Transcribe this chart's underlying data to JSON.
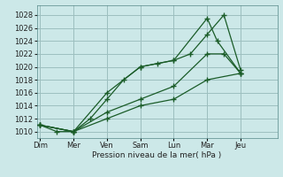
{
  "background_color": "#cce8e8",
  "grid_color": "#9dbfbf",
  "line_color": "#1a5c28",
  "xlabel": "Pression niveau de la mer( hPa )",
  "ylim": [
    1009,
    1029.5
  ],
  "yticks": [
    1010,
    1012,
    1014,
    1016,
    1018,
    1020,
    1022,
    1024,
    1026,
    1028
  ],
  "xlim": [
    -0.1,
    7.1
  ],
  "xtick_positions": [
    0,
    1,
    2,
    3,
    4,
    5,
    6
  ],
  "xtick_labels": [
    "Dim",
    "Mer",
    "Ven",
    "Sam",
    "Lun",
    "Mar",
    "Jeu"
  ],
  "series": [
    {
      "x": [
        0,
        0.5,
        1,
        1.5,
        2,
        2.5,
        3,
        3.5,
        4,
        4.5,
        5,
        5.5,
        6
      ],
      "y": [
        1011,
        1010,
        1010,
        1012,
        1015,
        1018,
        1020,
        1020.5,
        1021,
        1022,
        1025,
        1028,
        1019.5
      ]
    },
    {
      "x": [
        0,
        1,
        2,
        3,
        4,
        5,
        5.3,
        6
      ],
      "y": [
        1011,
        1010,
        1016,
        1020,
        1021,
        1027.5,
        1024,
        1019
      ]
    },
    {
      "x": [
        0,
        1,
        2,
        3,
        4,
        5,
        5.5,
        6
      ],
      "y": [
        1011,
        1010,
        1013,
        1015,
        1017,
        1022,
        1022,
        1019
      ]
    },
    {
      "x": [
        0,
        1,
        2,
        3,
        4,
        5,
        6
      ],
      "y": [
        1011,
        1010,
        1012,
        1014,
        1015,
        1018,
        1019
      ]
    }
  ]
}
